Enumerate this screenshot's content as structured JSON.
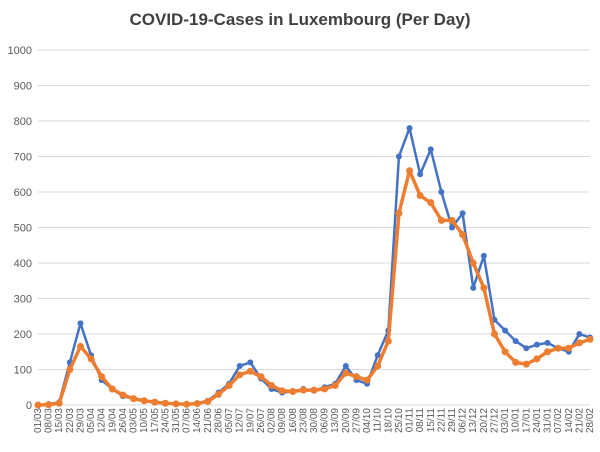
{
  "chart_data": {
    "type": "line",
    "title": "COVID-19-Cases in Luxembourg (Per Day)",
    "xlabel": "",
    "ylabel": "",
    "ylim": [
      0,
      1000
    ],
    "y_ticks": [
      0,
      100,
      200,
      300,
      400,
      500,
      600,
      700,
      800,
      900,
      1000
    ],
    "grid": true,
    "legend": "none",
    "categories": [
      "01/03",
      "08/03",
      "15/03",
      "22/03",
      "29/03",
      "05/04",
      "12/04",
      "19/04",
      "26/04",
      "03/05",
      "10/05",
      "17/05",
      "24/05",
      "31/05",
      "07/06",
      "14/06",
      "21/06",
      "28/06",
      "05/07",
      "12/07",
      "19/07",
      "26/07",
      "02/08",
      "09/08",
      "16/08",
      "23/08",
      "30/08",
      "06/09",
      "13/09",
      "20/09",
      "27/09",
      "04/10",
      "11/10",
      "18/10",
      "25/10",
      "01/11",
      "08/11",
      "15/11",
      "22/11",
      "29/11",
      "06/12",
      "13/12",
      "20/12",
      "27/12",
      "03/01",
      "10/01",
      "17/01",
      "24/01",
      "31/01",
      "07/02",
      "14/02",
      "21/02",
      "28/02"
    ],
    "series": [
      {
        "color": "#4472c4",
        "values": [
          0,
          2,
          8,
          120,
          230,
          140,
          70,
          45,
          25,
          18,
          12,
          8,
          5,
          3,
          2,
          5,
          12,
          35,
          60,
          110,
          120,
          75,
          45,
          35,
          38,
          45,
          40,
          50,
          60,
          110,
          70,
          60,
          140,
          210,
          700,
          780,
          650,
          720,
          600,
          500,
          540,
          330,
          420,
          240,
          210,
          180,
          160,
          170,
          175,
          160,
          150,
          200,
          190
        ]
      },
      {
        "color": "#ed7d31",
        "values": [
          0,
          1,
          5,
          100,
          165,
          130,
          80,
          45,
          28,
          18,
          12,
          8,
          5,
          3,
          2,
          4,
          10,
          30,
          55,
          85,
          95,
          80,
          55,
          40,
          38,
          42,
          42,
          45,
          55,
          90,
          80,
          70,
          110,
          180,
          540,
          660,
          590,
          570,
          520,
          520,
          480,
          400,
          330,
          200,
          150,
          120,
          115,
          130,
          150,
          160,
          160,
          175,
          185
        ]
      }
    ]
  }
}
